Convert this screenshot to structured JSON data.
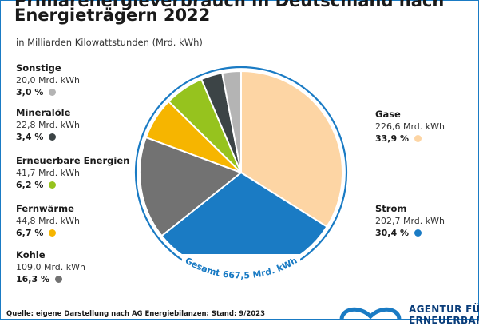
{
  "title_line_1": "Primärenergieverbrauch in Deutschland nach",
  "title_line_2": "Energieträgern 2022",
  "subtitle": "in Milliarden Kilowattstunden (Mrd. kWh)",
  "total_label": "Gesamt 667,5 Mrd. kWh",
  "source": "Quelle: eigene Darstellung nach AG Energiebilanzen; Stand: 9/2023",
  "logo": {
    "line1": "AGENTUR FÜR",
    "line2": "ERNEUERBARE",
    "icon": "infinity-logo-icon"
  },
  "colors": {
    "ring": "#1a7bc4",
    "frame": "#1a7bc4"
  },
  "chart_data": {
    "type": "pie",
    "unit": "Mrd. kWh",
    "total": 667.5,
    "slices": [
      {
        "name": "Gase",
        "value": 226.6,
        "value_text": "226,6 Mrd. kWh",
        "percent_text": "33,9 %",
        "color": "#fdd5a4"
      },
      {
        "name": "Strom",
        "value": 202.7,
        "value_text": "202,7 Mrd. kWh",
        "percent_text": "30,4 %",
        "color": "#1a7bc4"
      },
      {
        "name": "Kohle",
        "value": 109.0,
        "value_text": "109,0 Mrd. kWh",
        "percent_text": "16,3 %",
        "color": "#727272"
      },
      {
        "name": "Fernwärme",
        "value": 44.8,
        "value_text": "44,8 Mrd. kWh",
        "percent_text": "6,7 %",
        "color": "#f6b500"
      },
      {
        "name": "Erneuerbare Energien",
        "value": 41.7,
        "value_text": "41,7 Mrd. kWh",
        "percent_text": "6,2 %",
        "color": "#96c31e"
      },
      {
        "name": "Mineralöle",
        "value": 22.8,
        "value_text": "22,8 Mrd. kWh",
        "percent_text": "3,4 %",
        "color": "#3c4446"
      },
      {
        "name": "Sonstige",
        "value": 20.0,
        "value_text": "20,0 Mrd. kWh",
        "percent_text": "3,0 %",
        "color": "#b4b4b4"
      }
    ]
  }
}
